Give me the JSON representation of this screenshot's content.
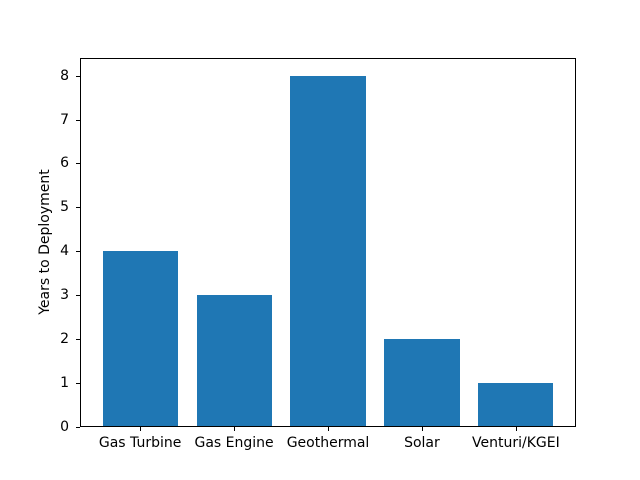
{
  "chart_data": {
    "type": "bar",
    "categories": [
      "Gas Turbine",
      "Gas Engine",
      "Geothermal",
      "Solar",
      "Venturi/KGEI"
    ],
    "values": [
      4,
      3,
      8,
      2,
      1
    ],
    "title": "",
    "xlabel": "",
    "ylabel": "Years to Deployment",
    "ylim": [
      0,
      8.4
    ],
    "yticks": [
      0,
      1,
      2,
      3,
      4,
      5,
      6,
      7,
      8
    ],
    "bar_color": "#1f77b4",
    "bar_width_fraction": 0.8,
    "axis_color": "#000000",
    "background_color": "#ffffff",
    "grid": false,
    "legend_position": "none"
  }
}
